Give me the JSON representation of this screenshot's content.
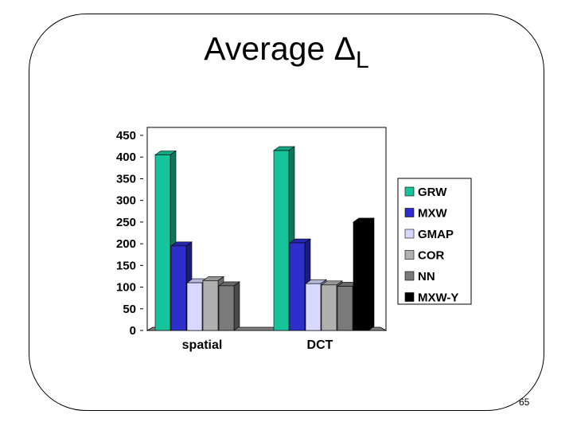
{
  "slide": {
    "title_main": "Average Δ",
    "title_sub": "L",
    "page_number": "65"
  },
  "chart_data": {
    "type": "bar",
    "title": "Average ΔL",
    "categories": [
      "spatial",
      "DCT"
    ],
    "ylim": [
      0,
      450
    ],
    "yticks": [
      0,
      50,
      100,
      150,
      200,
      250,
      300,
      350,
      400,
      450
    ],
    "legend_position": "right",
    "grid": false,
    "series": [
      {
        "name": "GRW",
        "color": "#17C39A",
        "values": [
          405,
          415
        ]
      },
      {
        "name": "MXW",
        "color": "#2E2ECC",
        "values": [
          195,
          202
        ]
      },
      {
        "name": "GMAP",
        "color": "#D8D8FF",
        "values": [
          110,
          108
        ]
      },
      {
        "name": "COR",
        "color": "#B0B0B0",
        "values": [
          115,
          105
        ]
      },
      {
        "name": "NN",
        "color": "#7A7A7A",
        "values": [
          103,
          102
        ]
      },
      {
        "name": "MXW-Y",
        "color": "#000000",
        "values": [
          null,
          250
        ]
      }
    ]
  }
}
